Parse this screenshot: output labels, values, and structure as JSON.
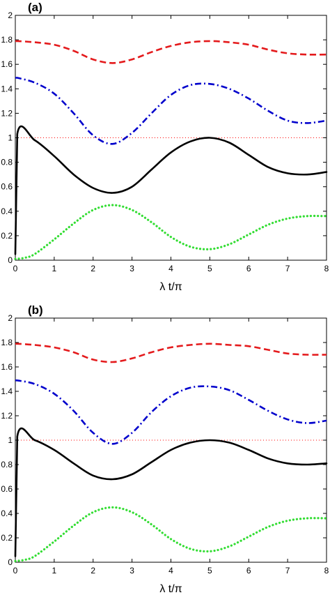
{
  "chart_data": [
    {
      "type": "line",
      "panel_label": "(a)",
      "xlabel": "λ t/π",
      "ylabel": "",
      "xlim": [
        0,
        8
      ],
      "ylim": [
        0,
        2
      ],
      "xticks": [
        "0",
        "1",
        "2",
        "3",
        "4",
        "5",
        "6",
        "7",
        "8"
      ],
      "yticks": [
        "0",
        "0.2",
        "0.4",
        "0.6",
        "0.8",
        "1",
        "1.2",
        "1.4",
        "1.6",
        "1.8",
        "2"
      ],
      "grid": false,
      "legend": "none",
      "reference_line": {
        "y": 1,
        "style": "dotted",
        "color": "#ff0000"
      },
      "series": [
        {
          "style": "dashed",
          "color": "#e41a1c",
          "x": [
            0,
            0.05,
            0.5,
            1,
            1.5,
            2,
            2.5,
            3,
            3.5,
            4,
            4.5,
            5,
            5.5,
            6,
            6.5,
            7,
            7.5,
            8
          ],
          "y": [
            1.79,
            1.79,
            1.78,
            1.76,
            1.71,
            1.64,
            1.61,
            1.64,
            1.7,
            1.75,
            1.78,
            1.79,
            1.78,
            1.76,
            1.72,
            1.69,
            1.68,
            1.68
          ]
        },
        {
          "style": "dash-dot",
          "color": "#0000cc",
          "x": [
            0,
            0.05,
            0.5,
            1,
            1.5,
            2,
            2.5,
            3,
            3.5,
            4,
            4.5,
            5,
            5.5,
            6,
            6.5,
            7,
            7.5,
            8
          ],
          "y": [
            1.49,
            1.49,
            1.45,
            1.36,
            1.2,
            1.02,
            0.95,
            1.04,
            1.2,
            1.35,
            1.43,
            1.44,
            1.4,
            1.32,
            1.22,
            1.14,
            1.12,
            1.14
          ]
        },
        {
          "style": "solid",
          "color": "#000000",
          "x": [
            0,
            0.05,
            0.5,
            1,
            1.5,
            2,
            2.5,
            3,
            3.5,
            4,
            4.5,
            5,
            5.5,
            6,
            6.5,
            7,
            7.5,
            8
          ],
          "y": [
            0.05,
            1.03,
            0.98,
            0.85,
            0.7,
            0.59,
            0.55,
            0.6,
            0.74,
            0.88,
            0.97,
            1.0,
            0.96,
            0.86,
            0.76,
            0.71,
            0.7,
            0.72
          ]
        },
        {
          "style": "dotted",
          "color": "#33dd33",
          "x": [
            0,
            0.25,
            0.5,
            1,
            1.5,
            2,
            2.5,
            3,
            3.5,
            4,
            4.5,
            5,
            5.5,
            6,
            6.5,
            7,
            7.5,
            8
          ],
          "y": [
            0.01,
            0.02,
            0.05,
            0.17,
            0.3,
            0.41,
            0.45,
            0.41,
            0.31,
            0.19,
            0.11,
            0.09,
            0.13,
            0.21,
            0.29,
            0.34,
            0.36,
            0.36
          ]
        }
      ]
    },
    {
      "type": "line",
      "panel_label": "(b)",
      "xlabel": "λ t/π",
      "ylabel": "",
      "xlim": [
        0,
        8
      ],
      "ylim": [
        0,
        2
      ],
      "xticks": [
        "0",
        "1",
        "2",
        "3",
        "4",
        "5",
        "6",
        "7",
        "8"
      ],
      "yticks": [
        "0",
        "0.2",
        "0.4",
        "0.6",
        "0.8",
        "1",
        "1.2",
        "1.4",
        "1.6",
        "1.8",
        "2"
      ],
      "grid": false,
      "legend": "none",
      "reference_line": {
        "y": 1,
        "style": "dotted",
        "color": "#ff0000"
      },
      "series": [
        {
          "style": "dashed",
          "color": "#e41a1c",
          "x": [
            0,
            0.05,
            0.5,
            1,
            1.5,
            2,
            2.5,
            3,
            3.5,
            4,
            4.5,
            5,
            5.5,
            6,
            6.5,
            7,
            7.5,
            8
          ],
          "y": [
            1.79,
            1.79,
            1.78,
            1.76,
            1.72,
            1.66,
            1.64,
            1.67,
            1.72,
            1.76,
            1.78,
            1.79,
            1.78,
            1.77,
            1.74,
            1.71,
            1.7,
            1.7
          ]
        },
        {
          "style": "dash-dot",
          "color": "#0000cc",
          "x": [
            0,
            0.05,
            0.5,
            1,
            1.5,
            2,
            2.5,
            3,
            3.5,
            4,
            4.5,
            5,
            5.5,
            6,
            6.5,
            7,
            7.5,
            8
          ],
          "y": [
            1.49,
            1.49,
            1.46,
            1.38,
            1.24,
            1.06,
            0.97,
            1.06,
            1.23,
            1.36,
            1.43,
            1.44,
            1.41,
            1.33,
            1.24,
            1.17,
            1.14,
            1.16
          ]
        },
        {
          "style": "solid",
          "color": "#000000",
          "x": [
            0,
            0.05,
            0.5,
            1,
            1.5,
            2,
            2.5,
            3,
            3.5,
            4,
            4.5,
            5,
            5.5,
            6,
            6.5,
            7,
            7.5,
            8
          ],
          "y": [
            0.05,
            1.03,
            1.0,
            0.92,
            0.81,
            0.71,
            0.68,
            0.72,
            0.82,
            0.92,
            0.98,
            1.0,
            0.98,
            0.92,
            0.85,
            0.81,
            0.8,
            0.81
          ]
        },
        {
          "style": "dotted",
          "color": "#33dd33",
          "x": [
            0,
            0.25,
            0.5,
            1,
            1.5,
            2,
            2.5,
            3,
            3.5,
            4,
            4.5,
            5,
            5.5,
            6,
            6.5,
            7,
            7.5,
            8
          ],
          "y": [
            0.01,
            0.02,
            0.05,
            0.17,
            0.3,
            0.41,
            0.45,
            0.41,
            0.31,
            0.19,
            0.11,
            0.09,
            0.13,
            0.21,
            0.29,
            0.34,
            0.36,
            0.36
          ]
        }
      ]
    }
  ]
}
